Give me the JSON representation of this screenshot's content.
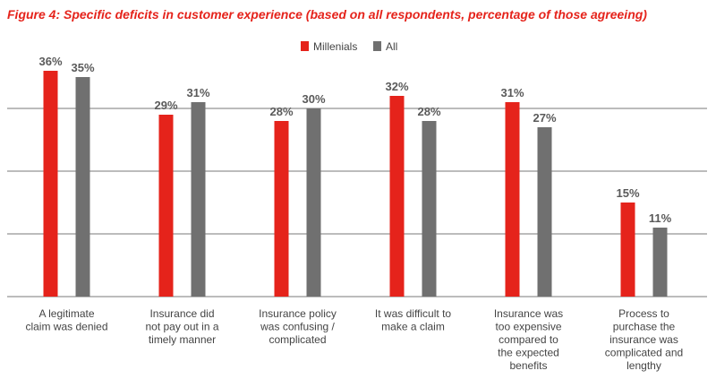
{
  "chart_data": {
    "type": "bar",
    "title": "Figure 4: Specific deficits in customer experience (based on all respondents, percentage of those agreeing)",
    "categories": [
      [
        "A legitimate",
        "claim was denied"
      ],
      [
        "Insurance did",
        "not pay out in a",
        "timely manner"
      ],
      [
        "Insurance policy",
        "was confusing /",
        "complicated"
      ],
      [
        "It was difficult to",
        "make a claim"
      ],
      [
        "Insurance was",
        "too expensive",
        "compared to",
        "the expected",
        "benefits"
      ],
      [
        "Process to",
        "purchase the",
        "insurance was",
        "complicated and",
        "lengthy"
      ]
    ],
    "series": [
      {
        "name": "Millenials",
        "color": "#e5231b",
        "values": [
          36,
          29,
          28,
          32,
          31,
          15
        ]
      },
      {
        "name": "All",
        "color": "#707070",
        "values": [
          35,
          31,
          30,
          28,
          27,
          11
        ]
      }
    ],
    "value_suffix": "%",
    "ylim": [
      0,
      40
    ],
    "gridlines": [
      0,
      10,
      20,
      30
    ],
    "grid_color": "#7a7a7a",
    "legend_position": "top-center"
  }
}
